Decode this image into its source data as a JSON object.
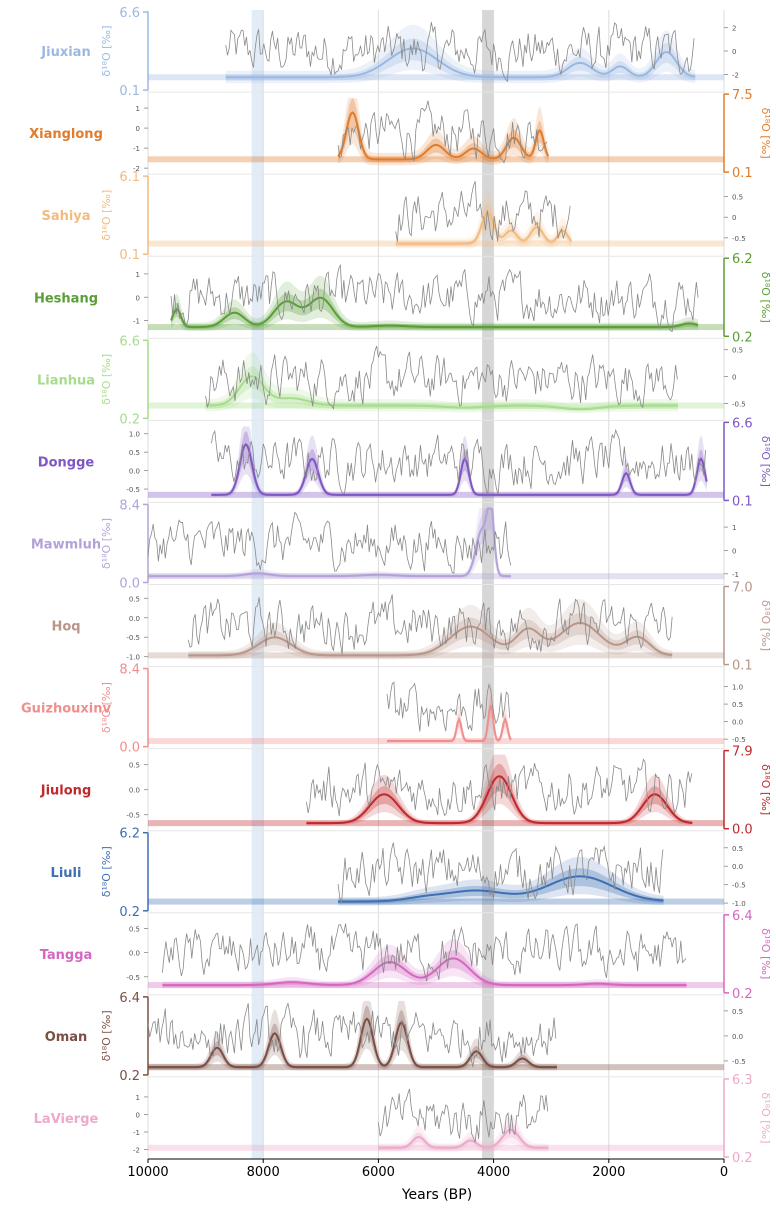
{
  "chart_data": {
    "type": "line",
    "description_free": true,
    "xlabel": "Years (BP)",
    "xlim": [
      10000,
      0
    ],
    "x_ticks": [
      "10000",
      "8000",
      "6000",
      "4000",
      "2000",
      "0"
    ],
    "x_tick_values": [
      10000,
      8000,
      6000,
      4000,
      2000,
      0
    ],
    "highlight_bands": [
      {
        "from": 8200,
        "to": 8000,
        "color": "#a9c8e8"
      },
      {
        "from": 4200,
        "to": 4000,
        "color": "#8c8c8c"
      }
    ],
    "gray_series_color": "#8a8a8a",
    "records": [
      {
        "name": "Jiuxian",
        "color": "#9bb8e2",
        "left_axis": "δ¹⁸O [‰]",
        "right_axis": "",
        "ylim": [
          "0.1",
          "6.6"
        ],
        "gray_ticks": [
          "2",
          "0",
          "-2"
        ],
        "gray_range": [
          -3,
          3
        ],
        "start": 8650,
        "end": 500,
        "baseline": 0.15,
        "peaks": [
          [
            5400,
            0.55,
            600
          ],
          [
            2500,
            0.35,
            300
          ],
          [
            1800,
            0.3,
            200
          ],
          [
            1000,
            0.5,
            250
          ]
        ]
      },
      {
        "name": "Xianglong",
        "color": "#e07c2c",
        "left_axis": "",
        "right_axis": "δ¹⁸O [‰]",
        "ylim": [
          "0.1",
          "7.5"
        ],
        "gray_ticks": [
          "1",
          "0",
          "-1",
          "-2"
        ],
        "gray_range": [
          -2,
          1.5
        ],
        "start": 6700,
        "end": 3050,
        "baseline": 0.15,
        "peaks": [
          [
            6450,
            0.8,
            150
          ],
          [
            5000,
            0.35,
            220
          ],
          [
            4350,
            0.3,
            200
          ],
          [
            3650,
            0.45,
            180
          ],
          [
            3200,
            0.55,
            100
          ]
        ]
      },
      {
        "name": "Sahiya",
        "color": "#f2bb7f",
        "left_axis": "δ¹⁸O [‰]",
        "right_axis": "",
        "ylim": [
          "0.1",
          "6.1"
        ],
        "gray_ticks": [
          "0.5",
          "0",
          "-0.5"
        ],
        "gray_range": [
          -0.8,
          0.9
        ],
        "start": 5700,
        "end": 2650,
        "baseline": 0.12,
        "peaks": [
          [
            4100,
            0.55,
            150
          ],
          [
            3700,
            0.3,
            150
          ],
          [
            3250,
            0.35,
            150
          ],
          [
            2800,
            0.3,
            120
          ]
        ]
      },
      {
        "name": "Heshang",
        "color": "#5a9e36",
        "left_axis": "",
        "right_axis": "δ¹⁸O [‰]",
        "ylim": [
          "0.2",
          "6.2"
        ],
        "gray_ticks": [
          "1",
          "0",
          "-1"
        ],
        "gray_range": [
          -1.5,
          1.5
        ],
        "start": 9600,
        "end": 450,
        "baseline": 0.1,
        "peaks": [
          [
            9500,
            0.35,
            100
          ],
          [
            8500,
            0.3,
            250
          ],
          [
            7600,
            0.45,
            300
          ],
          [
            7000,
            0.5,
            300
          ],
          [
            5800,
            0.12,
            400
          ],
          [
            600,
            0.15,
            200
          ]
        ]
      },
      {
        "name": "Lianhua",
        "color": "#a6dc8c",
        "left_axis": "δ¹⁸O [‰]",
        "right_axis": "",
        "ylim": [
          "0.2",
          "6.6"
        ],
        "gray_ticks": [
          "0.5",
          "0",
          "-0.5"
        ],
        "gray_range": [
          -0.7,
          0.6
        ],
        "start": 9000,
        "end": 800,
        "baseline": 0.15,
        "peaks": [
          [
            8200,
            0.55,
            300
          ],
          [
            7500,
            0.25,
            400
          ],
          [
            6500,
            0.15,
            500
          ],
          [
            4500,
            0.12,
            500
          ],
          [
            2500,
            0.1,
            500
          ]
        ]
      },
      {
        "name": "Dongge",
        "color": "#7e57c2",
        "left_axis": "",
        "right_axis": "δ¹⁸O [‰]",
        "ylim": [
          "0.1",
          "6.6"
        ],
        "gray_ticks": [
          "1.0",
          "0.5",
          "0.0",
          "-0.5"
        ],
        "gray_range": [
          -0.7,
          1.2
        ],
        "start": 8900,
        "end": 300,
        "baseline": 0.05,
        "peaks": [
          [
            8300,
            0.75,
            150
          ],
          [
            7150,
            0.55,
            150
          ],
          [
            4500,
            0.55,
            100
          ],
          [
            1700,
            0.35,
            100
          ],
          [
            400,
            0.55,
            100
          ]
        ]
      },
      {
        "name": "Mawmluh",
        "color": "#b3a2d8",
        "left_axis": "δ¹⁸O [‰]",
        "right_axis": "",
        "ylim": [
          "0.0",
          "8.4"
        ],
        "gray_ticks": [
          "1",
          "0",
          "-1"
        ],
        "gray_range": [
          -1.2,
          1.8
        ],
        "start": 10000,
        "end": 3700,
        "baseline": 0.06,
        "peaks": [
          [
            8100,
            0.1,
            300
          ],
          [
            6000,
            0.08,
            400
          ],
          [
            4200,
            0.7,
            150
          ],
          [
            4050,
            0.9,
            80
          ]
        ]
      },
      {
        "name": "Hoq",
        "color": "#b8978a",
        "left_axis": "",
        "right_axis": "δ¹⁸O [‰]",
        "ylim": [
          "0.1",
          "7.0"
        ],
        "gray_ticks": [
          "0.5",
          "0.0",
          "-0.5",
          "-1.0"
        ],
        "gray_range": [
          -1.1,
          0.7
        ],
        "start": 9300,
        "end": 900,
        "baseline": 0.1,
        "peaks": [
          [
            7800,
            0.35,
            400
          ],
          [
            4400,
            0.5,
            500
          ],
          [
            3400,
            0.45,
            300
          ],
          [
            2500,
            0.55,
            500
          ],
          [
            1500,
            0.35,
            300
          ]
        ]
      },
      {
        "name": "Guizhouxinv",
        "color": "#f08e8e",
        "left_axis": "δ¹⁸O [‰]",
        "right_axis": "",
        "ylim": [
          "0.0",
          "8.4"
        ],
        "gray_ticks": [
          "1.0",
          "0.5",
          "0.0",
          "-0.5"
        ],
        "gray_range": [
          -0.6,
          1.4
        ],
        "start": 5850,
        "end": 3700,
        "baseline": 0.05,
        "peaks": [
          [
            4600,
            0.35,
            60
          ],
          [
            4050,
            0.55,
            60
          ],
          [
            3800,
            0.35,
            60
          ]
        ]
      },
      {
        "name": "Jiulong",
        "color": "#c0282c",
        "left_axis": "",
        "right_axis": "δ¹⁸O [‰]",
        "ylim": [
          "0.0",
          "7.9"
        ],
        "gray_ticks": [
          "0.5",
          "0.0",
          "-0.5"
        ],
        "gray_range": [
          -0.7,
          0.7
        ],
        "start": 7250,
        "end": 550,
        "baseline": 0.05,
        "peaks": [
          [
            5900,
            0.45,
            350
          ],
          [
            3900,
            0.7,
            300
          ],
          [
            1200,
            0.45,
            300
          ]
        ]
      },
      {
        "name": "Liuli",
        "color": "#3f6fb3",
        "left_axis": "δ¹⁸O [‰]",
        "right_axis": "",
        "ylim": [
          "0.2",
          "6.2"
        ],
        "gray_ticks": [
          "0.5",
          "0.0",
          "-0.5",
          "-1.0"
        ],
        "gray_range": [
          -1.1,
          0.8
        ],
        "start": 6700,
        "end": 1050,
        "baseline": 0.1,
        "peaks": [
          [
            4300,
            0.25,
            700
          ],
          [
            2500,
            0.45,
            800
          ],
          [
            5200,
            0.15,
            500
          ]
        ]
      },
      {
        "name": "Tangga",
        "color": "#d468c0",
        "left_axis": "",
        "right_axis": "δ¹⁸O [‰]",
        "ylim": [
          "0.2",
          "6.4"
        ],
        "gray_ticks": [
          "0.5",
          "0.0",
          "-0.5"
        ],
        "gray_range": [
          -0.75,
          0.7
        ],
        "start": 9750,
        "end": 650,
        "baseline": 0.08,
        "peaks": [
          [
            7500,
            0.12,
            400
          ],
          [
            5800,
            0.4,
            400
          ],
          [
            4700,
            0.45,
            400
          ],
          [
            2200,
            0.1,
            300
          ]
        ]
      },
      {
        "name": "Oman",
        "color": "#7b4f45",
        "left_axis": "δ¹⁸O [‰]",
        "right_axis": "",
        "ylim": [
          "0.2",
          "6.4"
        ],
        "gray_ticks": [
          "0.5",
          "0.0",
          "-0.5"
        ],
        "gray_range": [
          -0.7,
          0.7
        ],
        "start": 10000,
        "end": 2900,
        "baseline": 0.08,
        "peaks": [
          [
            8800,
            0.35,
            150
          ],
          [
            7800,
            0.55,
            150
          ],
          [
            6200,
            0.75,
            150
          ],
          [
            5600,
            0.7,
            150
          ],
          [
            4300,
            0.3,
            150
          ],
          [
            3500,
            0.2,
            150
          ]
        ]
      },
      {
        "name": "LaVierge",
        "color": "#ecaacb",
        "left_axis": "",
        "right_axis": "δ¹⁸O [‰]",
        "ylim": [
          "0.2",
          "6.3"
        ],
        "gray_ticks": [
          "1",
          "0",
          "-1",
          "-2"
        ],
        "gray_range": [
          -2.2,
          1.8
        ],
        "start": 6000,
        "end": 3050,
        "baseline": 0.1,
        "peaks": [
          [
            5300,
            0.25,
            150
          ],
          [
            4400,
            0.2,
            150
          ],
          [
            3700,
            0.35,
            200
          ]
        ]
      }
    ]
  }
}
